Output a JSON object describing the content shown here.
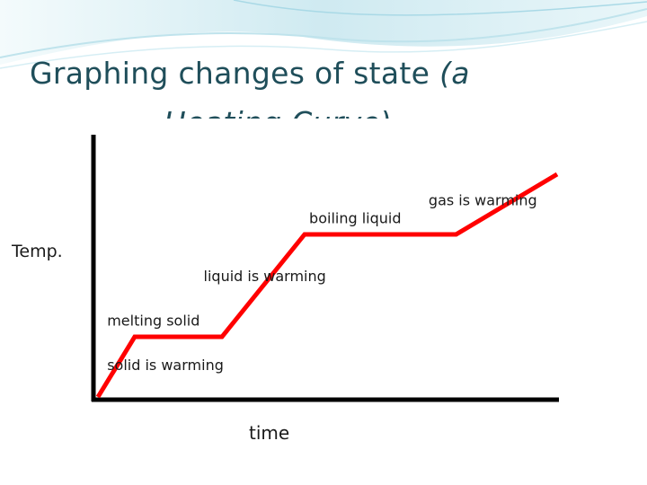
{
  "slide": {
    "title_line1_normal": "Graphing changes of state",
    "title_line1_italic": "(a",
    "title_line2_italic": "Heating Curve)",
    "accent_color": "#e8f4f7",
    "title_color": "#1f4e5a"
  },
  "chart_data": {
    "type": "line",
    "title": "",
    "xlabel": "time",
    "ylabel": "Temp.",
    "grid": false,
    "legend": "none",
    "series_color": "#ff0000",
    "axis_color": "#000000",
    "xlim": [
      0,
      100
    ],
    "ylim": [
      0,
      100
    ],
    "points": [
      [
        0,
        0
      ],
      [
        8,
        27
      ],
      [
        27,
        27
      ],
      [
        45,
        73
      ],
      [
        78,
        73
      ],
      [
        100,
        100
      ]
    ],
    "annotations": [
      {
        "text": "gas is warming",
        "x": 72,
        "y": 86
      },
      {
        "text": "boiling liquid",
        "x": 46,
        "y": 78
      },
      {
        "text": "liquid is warming",
        "x": 23,
        "y": 52
      },
      {
        "text": "melting solid",
        "x": 2,
        "y": 32
      },
      {
        "text": "solid is warming",
        "x": 2,
        "y": 12
      }
    ]
  }
}
